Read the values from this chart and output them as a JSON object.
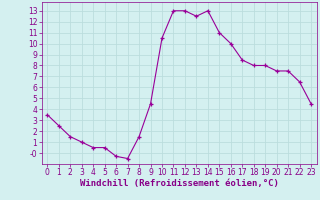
{
  "x": [
    0,
    1,
    2,
    3,
    4,
    5,
    6,
    7,
    8,
    9,
    10,
    11,
    12,
    13,
    14,
    15,
    16,
    17,
    18,
    19,
    20,
    21,
    22,
    23
  ],
  "y": [
    3.5,
    2.5,
    1.5,
    1.0,
    0.5,
    0.5,
    -0.3,
    -0.5,
    1.5,
    4.5,
    10.5,
    13.0,
    13.0,
    12.5,
    13.0,
    11.0,
    10.0,
    8.5,
    8.0,
    8.0,
    7.5,
    7.5,
    6.5,
    4.5
  ],
  "line_color": "#990099",
  "marker": "+",
  "bg_color": "#d4f0f0",
  "grid_color": "#bbdddd",
  "xlabel": "Windchill (Refroidissement éolien,°C)",
  "xlim": [
    -0.5,
    23.5
  ],
  "ylim": [
    -1.0,
    13.8
  ],
  "yticks": [
    0,
    1,
    2,
    3,
    4,
    5,
    6,
    7,
    8,
    9,
    10,
    11,
    12,
    13
  ],
  "ytick_labels": [
    "-0",
    "1",
    "2",
    "3",
    "4",
    "5",
    "6",
    "7",
    "8",
    "9",
    "10",
    "11",
    "12",
    "13"
  ],
  "xticks": [
    0,
    1,
    2,
    3,
    4,
    5,
    6,
    7,
    8,
    9,
    10,
    11,
    12,
    13,
    14,
    15,
    16,
    17,
    18,
    19,
    20,
    21,
    22,
    23
  ],
  "tick_color": "#880088",
  "label_color": "#880088",
  "axis_label_fontsize": 6.5,
  "tick_fontsize": 5.5,
  "linewidth": 0.8,
  "markersize": 3,
  "markeredgewidth": 0.9
}
